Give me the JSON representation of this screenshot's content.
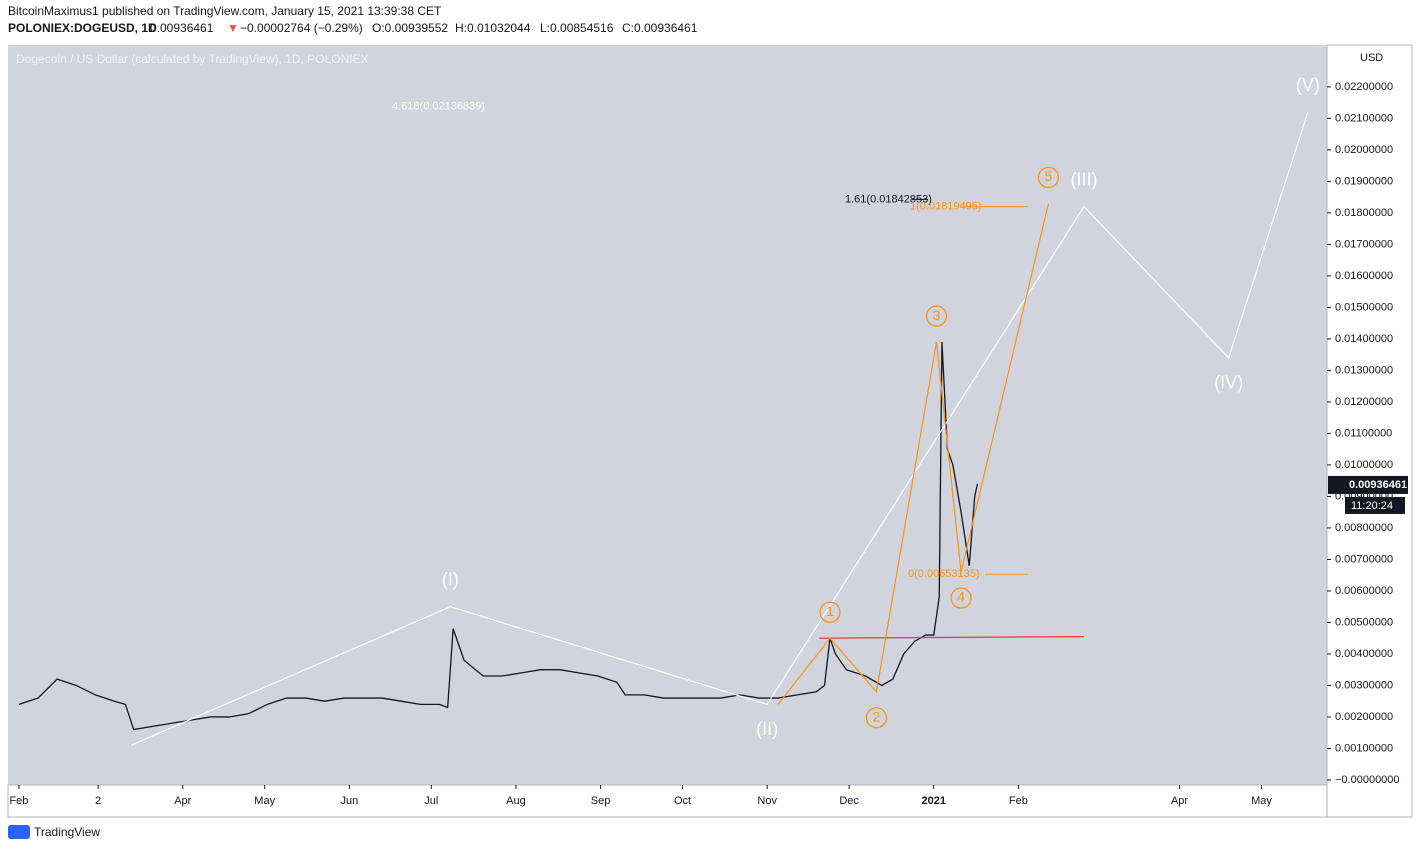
{
  "header": {
    "publisher": "BitcoinMaximus1 published on TradingView.com, January 15, 2021 13:39:38 CET",
    "symbol": "POLONIEX:DOGEUSD, 1D",
    "last": "0.00936461",
    "arrow": "▼",
    "change": "−0.00002764 (−0.29%)",
    "open": "O:0.00939552",
    "high": "H:0.01032044",
    "low": "L:0.00854516",
    "close": "C:0.00936461"
  },
  "footer": {
    "brand": "TradingView"
  },
  "chart_data": {
    "type": "line",
    "title": "Dogecoin / US Dollar (calculated by TradingView), 1D, POLONIEX",
    "y_unit": "USD",
    "series": [
      {
        "name": "DOGEUSD",
        "color": "#131722",
        "x": [
          0,
          7,
          14,
          21,
          28,
          35,
          39,
          42,
          49,
          56,
          63,
          70,
          77,
          84,
          91,
          98,
          105,
          112,
          119,
          126,
          133,
          140,
          147,
          154,
          157,
          159,
          163,
          170,
          177,
          184,
          191,
          198,
          205,
          212,
          219,
          222,
          229,
          236,
          243,
          250,
          257,
          264,
          271,
          278,
          285,
          292,
          295,
          297,
          299,
          303,
          310,
          316,
          320,
          324,
          328,
          332,
          335,
          337,
          338,
          340,
          342,
          345,
          348,
          350,
          351
        ],
        "values": [
          0.0024,
          0.0026,
          0.0032,
          0.003,
          0.0027,
          0.0025,
          0.0024,
          0.0016,
          0.0017,
          0.0018,
          0.0019,
          0.002,
          0.002,
          0.0021,
          0.0024,
          0.0026,
          0.0026,
          0.0025,
          0.0026,
          0.0026,
          0.0026,
          0.0025,
          0.0024,
          0.0024,
          0.0023,
          0.0048,
          0.0038,
          0.0033,
          0.0033,
          0.0034,
          0.0035,
          0.0035,
          0.0034,
          0.0033,
          0.0031,
          0.0027,
          0.0027,
          0.0026,
          0.0026,
          0.0026,
          0.0026,
          0.0027,
          0.0026,
          0.0026,
          0.0027,
          0.0028,
          0.003,
          0.0045,
          0.004,
          0.0035,
          0.0033,
          0.003,
          0.0032,
          0.004,
          0.0044,
          0.0046,
          0.0046,
          0.0058,
          0.0139,
          0.0105,
          0.01,
          0.0085,
          0.0068,
          0.009,
          0.0094
        ]
      }
    ],
    "waves": [
      {
        "color": "#ffffff",
        "x": [
          41,
          158,
          274,
          390,
          443,
          472
        ],
        "values": [
          0.0011,
          0.0055,
          0.0024,
          0.0182,
          0.0134,
          0.0212
        ],
        "labels": [
          null,
          "(I)",
          "(II)",
          "(III)",
          "(IV)",
          "(V)"
        ]
      },
      {
        "color": "#f7931a",
        "x": [
          278,
          297,
          314,
          336,
          345,
          377
        ],
        "values": [
          0.0024,
          0.0045,
          0.0028,
          0.0139,
          0.0066,
          0.0183
        ],
        "labels": [
          null,
          "1",
          "2",
          "3",
          "4",
          "5"
        ]
      }
    ],
    "support": {
      "color": "#e53935",
      "x": [
        293,
        390
      ],
      "values": [
        0.0045,
        0.00455
      ]
    },
    "fib_levels": [
      {
        "label": "4.618(0.02136839)",
        "value": 0.02136839,
        "color": "#ffffff"
      },
      {
        "label": "1.61(0.01842853)",
        "value": 0.01842853,
        "color": "#131722"
      },
      {
        "label": "1(0.01819495)",
        "value": 0.01819495,
        "color": "#f7931a"
      },
      {
        "label": "0(0.00653135)",
        "value": 0.00653135,
        "color": "#f7931a"
      }
    ],
    "price_tag": {
      "value": 0.00936461,
      "label": "0.00936461",
      "countdown": "11:20:24"
    },
    "xlim": [
      -4,
      479
    ],
    "xticks": [
      {
        "value": 0,
        "label": "Feb"
      },
      {
        "value": 29,
        "label": "2"
      },
      {
        "value": 60,
        "label": "Apr"
      },
      {
        "value": 90,
        "label": "May"
      },
      {
        "value": 121,
        "label": "Jun"
      },
      {
        "value": 151,
        "label": "Jul"
      },
      {
        "value": 182,
        "label": "Aug"
      },
      {
        "value": 213,
        "label": "Sep"
      },
      {
        "value": 243,
        "label": "Oct"
      },
      {
        "value": 274,
        "label": "Nov"
      },
      {
        "value": 304,
        "label": "Dec"
      },
      {
        "value": 335,
        "label": "2021"
      },
      {
        "value": 366,
        "label": "Feb"
      },
      {
        "value": 425,
        "label": "Apr"
      },
      {
        "value": 455,
        "label": "May"
      }
    ],
    "ylim": [
      -0.00016,
      0.02333
    ],
    "yticks": [
      {
        "value": 0,
        "label": "−0.00000000"
      },
      {
        "value": 0.001,
        "label": "0.00100000"
      },
      {
        "value": 0.002,
        "label": "0.00200000"
      },
      {
        "value": 0.003,
        "label": "0.00300000"
      },
      {
        "value": 0.004,
        "label": "0.00400000"
      },
      {
        "value": 0.005,
        "label": "0.00500000"
      },
      {
        "value": 0.006,
        "label": "0.00600000"
      },
      {
        "value": 0.007,
        "label": "0.00700000"
      },
      {
        "value": 0.008,
        "label": "0.00800000"
      },
      {
        "value": 0.009,
        "label": "0.00900000"
      },
      {
        "value": 0.01,
        "label": "0.01000000"
      },
      {
        "value": 0.011,
        "label": "0.01100000"
      },
      {
        "value": 0.012,
        "label": "0.01200000"
      },
      {
        "value": 0.013,
        "label": "0.01300000"
      },
      {
        "value": 0.014,
        "label": "0.01400000"
      },
      {
        "value": 0.015,
        "label": "0.01500000"
      },
      {
        "value": 0.016,
        "label": "0.01600000"
      },
      {
        "value": 0.017,
        "label": "0.01700000"
      },
      {
        "value": 0.018,
        "label": "0.01800000"
      },
      {
        "value": 0.019,
        "label": "0.01900000"
      },
      {
        "value": 0.02,
        "label": "0.02000000"
      },
      {
        "value": 0.021,
        "label": "0.02100000"
      },
      {
        "value": 0.022,
        "label": "0.02200000"
      }
    ]
  }
}
